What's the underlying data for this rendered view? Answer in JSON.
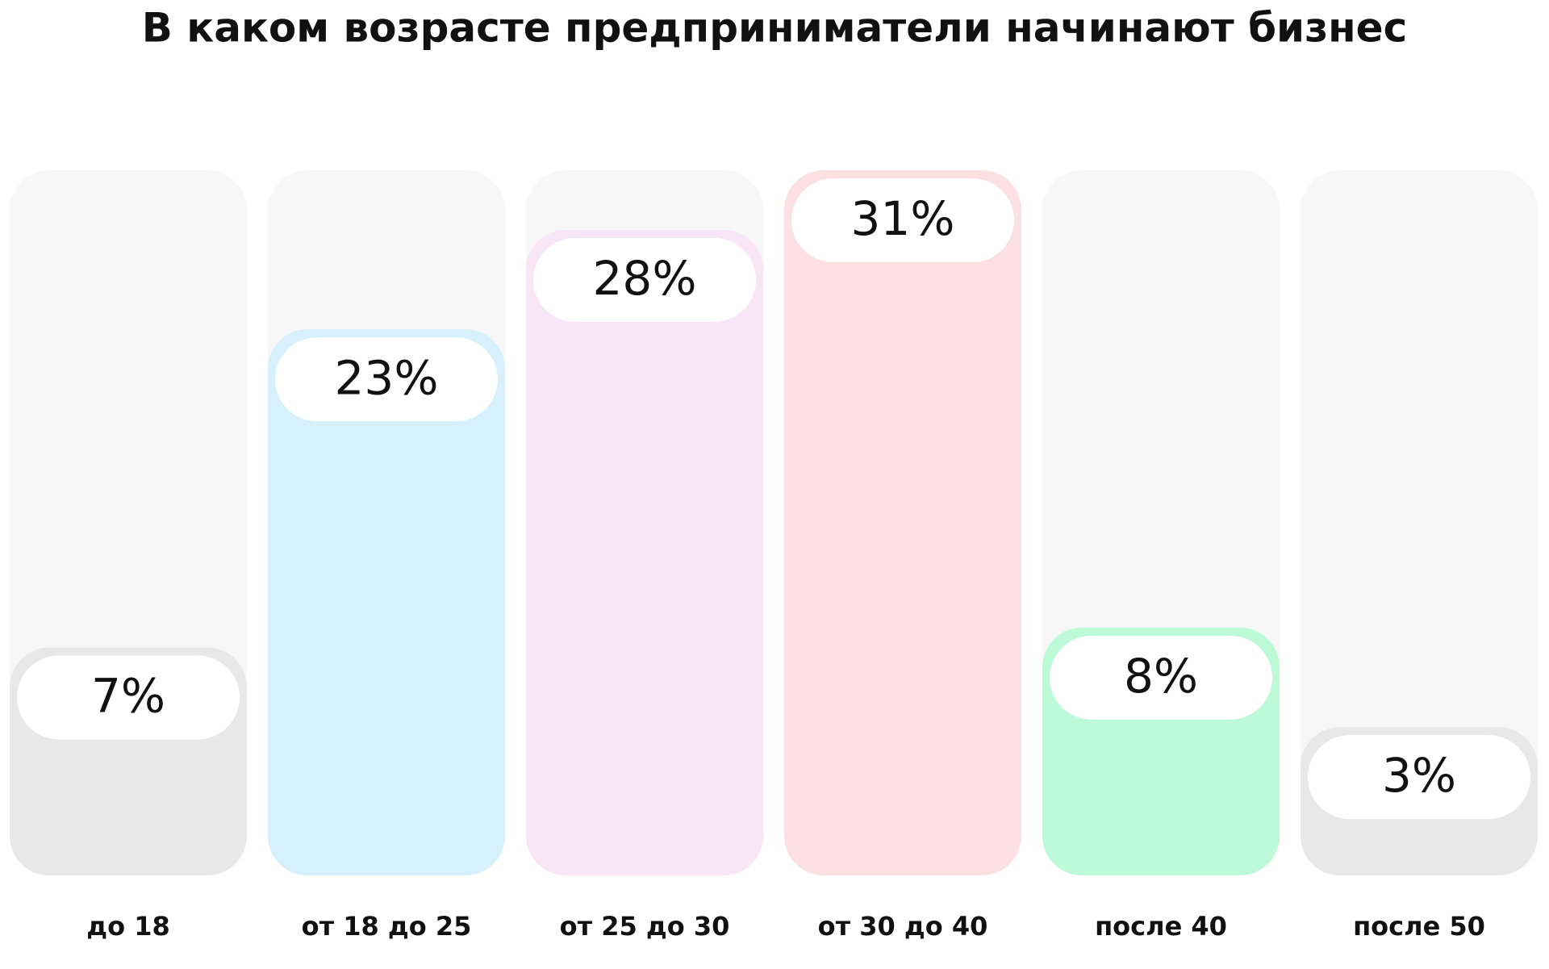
{
  "chart_data": {
    "type": "bar",
    "title": "В каком возрасте предприниматели начинают бизнес",
    "categories": [
      "до 18",
      "от 18 до 25",
      "от 25 до 30",
      "от 30 до 40",
      "после 40",
      "после 50"
    ],
    "values": [
      7,
      23,
      28,
      31,
      8,
      3
    ],
    "value_labels": [
      "7%",
      "23%",
      "28%",
      "31%",
      "8%",
      "3%"
    ],
    "colors": [
      "#e8e8e8",
      "#d6f0fc",
      "#f8e6f7",
      "#fde0e4",
      "#bdfbd8",
      "#e8e8e8"
    ]
  }
}
